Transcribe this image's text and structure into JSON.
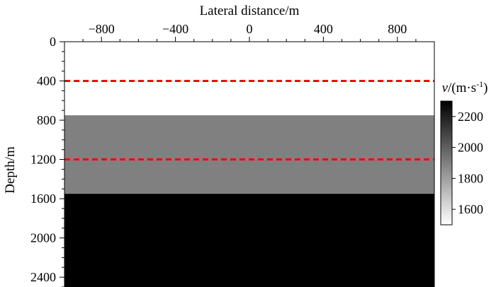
{
  "chart_data": {
    "type": "heatmap",
    "title": "",
    "xlabel": "Lateral distance/m",
    "ylabel": "Depth/m",
    "x_axis_position": "top",
    "xlim": [
      -1000,
      1000
    ],
    "ylim": [
      2500,
      0
    ],
    "x_ticks": [
      "-800",
      "-400",
      "0",
      "400",
      "800"
    ],
    "y_ticks": [
      "0",
      "400",
      "800",
      "1200",
      "1600",
      "2000",
      "2400"
    ],
    "layers": [
      {
        "depth_top": 0,
        "depth_bottom": 750,
        "velocity": 1500
      },
      {
        "depth_top": 750,
        "depth_bottom": 1550,
        "velocity": 1900
      },
      {
        "depth_top": 1550,
        "depth_bottom": 2500,
        "velocity": 2300
      }
    ],
    "reference_lines": [
      {
        "depth": 400,
        "style": "dashed",
        "color": "#ff0000"
      },
      {
        "depth": 1200,
        "style": "dashed",
        "color": "#ff0000"
      }
    ],
    "colorbar": {
      "label_italic": "v",
      "label_unit": "/(m·s",
      "label_exp": "-1",
      "label_close": ")",
      "range": [
        1500,
        2300
      ],
      "ticks": [
        "1600",
        "1800",
        "2000",
        "2200"
      ],
      "colormap": "gray_r"
    }
  }
}
